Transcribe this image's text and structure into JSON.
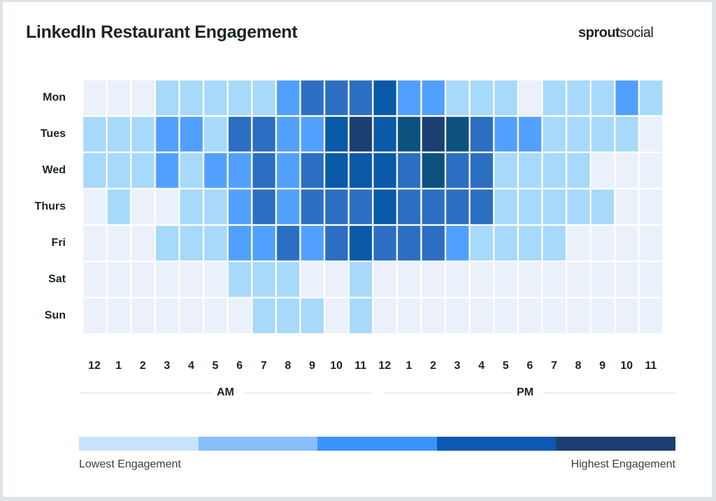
{
  "header": {
    "title": "LinkedIn Restaurant Engagement",
    "brand_bold": "sprout",
    "brand_light": "social"
  },
  "chart_data": {
    "type": "heatmap",
    "title": "LinkedIn Restaurant Engagement",
    "rows": [
      "Mon",
      "Tues",
      "Wed",
      "Thurs",
      "Fri",
      "Sat",
      "Sun"
    ],
    "columns": [
      "12",
      "1",
      "2",
      "3",
      "4",
      "5",
      "6",
      "7",
      "8",
      "9",
      "10",
      "11",
      "12",
      "1",
      "2",
      "3",
      "4",
      "5",
      "6",
      "7",
      "8",
      "9",
      "10",
      "11"
    ],
    "column_groups": [
      {
        "label": "AM",
        "start": 0,
        "end": 11
      },
      {
        "label": "PM",
        "start": 12,
        "end": 23
      }
    ],
    "value_scale": "0 = lowest engagement, 6 = highest engagement",
    "values": [
      [
        0,
        0,
        0,
        1,
        1,
        1,
        1,
        1,
        2,
        3,
        3,
        3,
        4,
        2,
        2,
        1,
        1,
        1,
        0,
        1,
        1,
        1,
        2,
        1
      ],
      [
        1,
        1,
        1,
        2,
        2,
        1,
        3,
        3,
        2,
        2,
        4,
        6,
        4,
        5,
        6,
        5,
        3,
        2,
        2,
        1,
        1,
        1,
        1,
        0
      ],
      [
        1,
        1,
        1,
        2,
        1,
        2,
        2,
        3,
        2,
        3,
        4,
        4,
        4,
        3,
        5,
        3,
        3,
        1,
        1,
        1,
        1,
        0,
        0,
        0
      ],
      [
        0,
        1,
        0,
        0,
        1,
        1,
        2,
        3,
        2,
        3,
        3,
        3,
        4,
        3,
        3,
        3,
        3,
        1,
        1,
        1,
        1,
        1,
        0,
        0
      ],
      [
        0,
        0,
        0,
        1,
        1,
        1,
        2,
        2,
        3,
        2,
        3,
        4,
        3,
        3,
        3,
        2,
        1,
        1,
        1,
        1,
        0,
        0,
        0,
        0
      ],
      [
        0,
        0,
        0,
        0,
        0,
        0,
        1,
        1,
        1,
        0,
        0,
        1,
        0,
        0,
        0,
        0,
        0,
        0,
        0,
        0,
        0,
        0,
        0,
        0
      ],
      [
        0,
        0,
        0,
        0,
        0,
        0,
        0,
        1,
        1,
        1,
        0,
        1,
        0,
        0,
        0,
        0,
        0,
        0,
        0,
        0,
        0,
        0,
        0,
        0
      ]
    ],
    "cell_colors": [
      "#EAF1FB",
      "#A6D9FA",
      "#52A0FD",
      "#2C6FC2",
      "#0B5AA8",
      "#0D527F",
      "#1C3F72"
    ],
    "legend": {
      "colors": [
        "#C9E2FB",
        "#89BDFC",
        "#3A93FB",
        "#0E58B3",
        "#1C3F72"
      ],
      "low_label": "Lowest Engagement",
      "high_label": "Highest Engagement"
    },
    "grid": false,
    "legend_position": "bottom"
  }
}
